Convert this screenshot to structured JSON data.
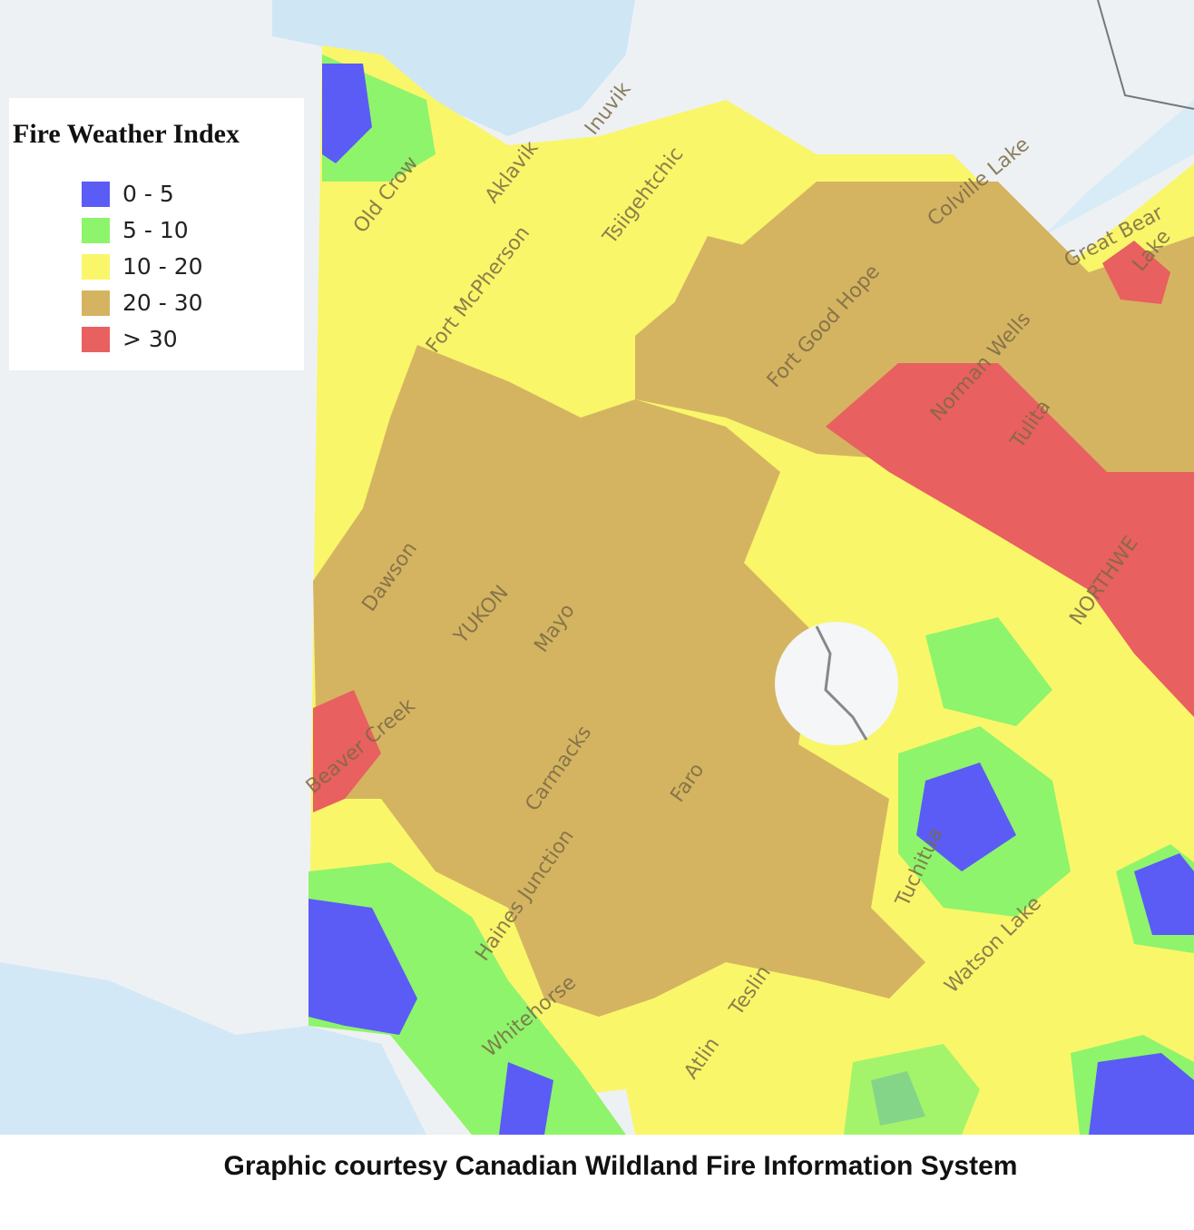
{
  "legend": {
    "title": "Fire Weather Index",
    "items": [
      {
        "label": "0 - 5",
        "color": "#5a5cf5"
      },
      {
        "label": "5 - 10",
        "color": "#8ef46b"
      },
      {
        "label": "10 - 20",
        "color": "#f9f66a"
      },
      {
        "label": "20 - 30",
        "color": "#d5b461"
      },
      {
        "label": "> 30",
        "color": "#e8605f"
      }
    ]
  },
  "places": [
    {
      "label": "Inuvik"
    },
    {
      "label": "Aklavik"
    },
    {
      "label": "Old Crow"
    },
    {
      "label": "Fort McPherson"
    },
    {
      "label": "Tsiigehtchic"
    },
    {
      "label": "Colville Lake"
    },
    {
      "label": "Great Bear"
    },
    {
      "label": "Lake"
    },
    {
      "label": "Fort Good Hope"
    },
    {
      "label": "Norman Wells"
    },
    {
      "label": "Tulita"
    },
    {
      "label": "Dawson"
    },
    {
      "label": "YUKON"
    },
    {
      "label": "Mayo"
    },
    {
      "label": "Beaver Creek"
    },
    {
      "label": "Carmacks"
    },
    {
      "label": "Faro"
    },
    {
      "label": "Haines Junction"
    },
    {
      "label": "Whitehorse"
    },
    {
      "label": "Teslin"
    },
    {
      "label": "Atlin"
    },
    {
      "label": "Watson Lake"
    },
    {
      "label": "Tuchitua"
    },
    {
      "label": "NORTHWE"
    }
  ],
  "caption": "Graphic courtesy Canadian Wildland Fire Information System"
}
